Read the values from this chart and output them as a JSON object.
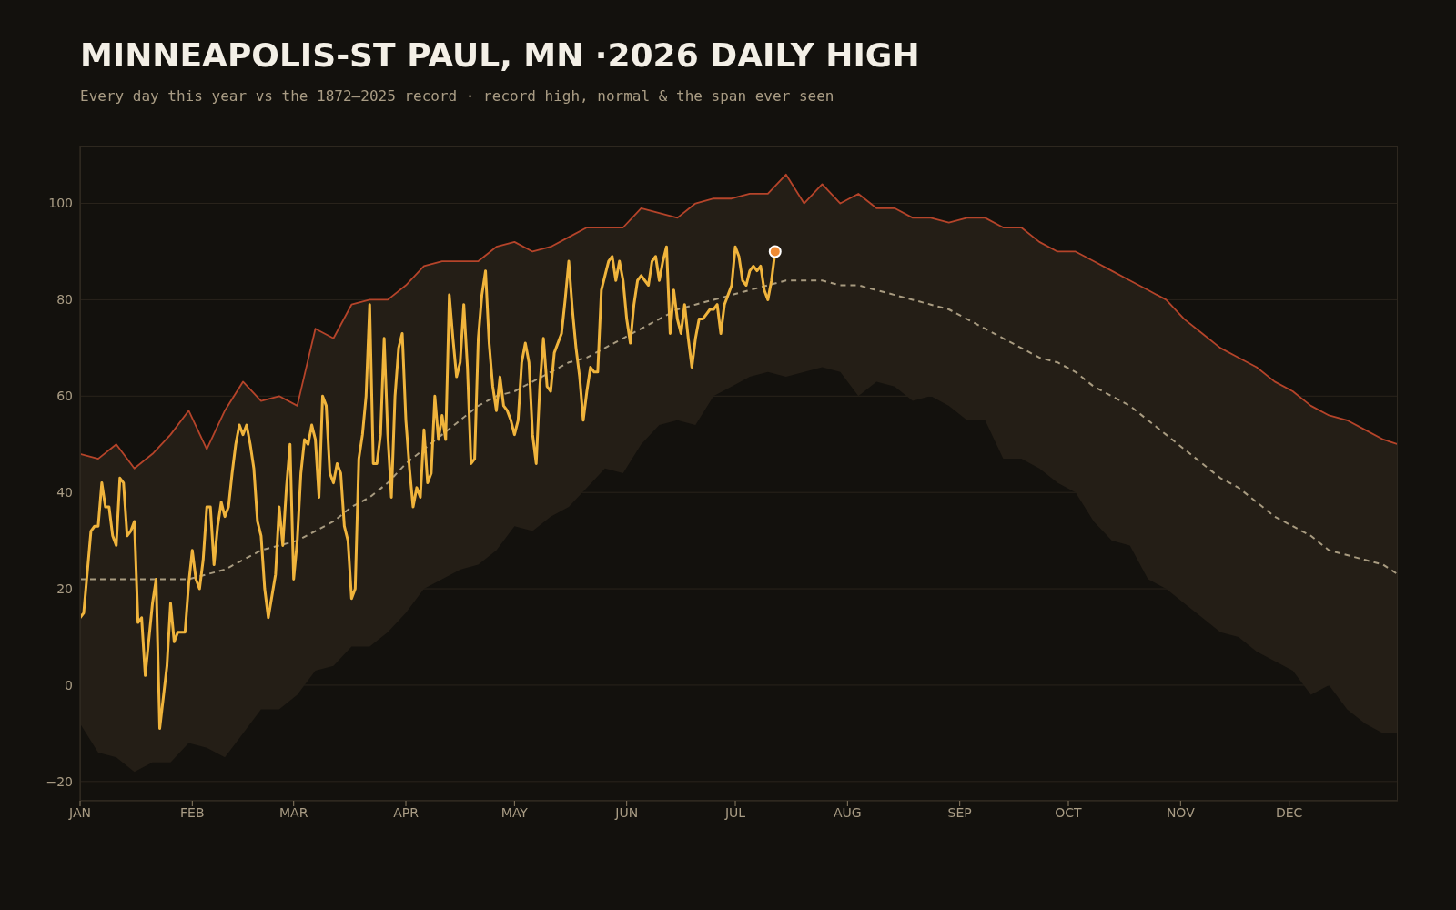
{
  "chart_data": {
    "type": "line",
    "title": "MINNEAPOLIS-ST PAUL, MN ·2026 DAILY HIGH",
    "subtitle": "Every day this year vs the 1872–2025 record · record high, normal & the span ever seen",
    "x": [
      "--01-01",
      "--01-06",
      "--01-11",
      "--01-16",
      "--01-21",
      "--01-26",
      "--01-31",
      "--02-05",
      "--02-10",
      "--02-15",
      "--02-20",
      "--02-25",
      "--03-02",
      "--03-07",
      "--03-12",
      "--03-17",
      "--03-22",
      "--03-27",
      "--04-01",
      "--04-06",
      "--04-11",
      "--04-16",
      "--04-21",
      "--04-26",
      "--05-01",
      "--05-06",
      "--05-11",
      "--05-16",
      "--05-21",
      "--05-26",
      "--05-31",
      "--06-05",
      "--06-10",
      "--06-15",
      "--06-20",
      "--06-25",
      "--06-30",
      "--07-05",
      "--07-10",
      "--07-15",
      "--07-20",
      "--07-25",
      "--07-30",
      "--08-04",
      "--08-09",
      "--08-14",
      "--08-19",
      "--08-24",
      "--08-29",
      "--09-03",
      "--09-08",
      "--09-13",
      "--09-18",
      "--09-23",
      "--09-28",
      "--10-03",
      "--10-08",
      "--10-13",
      "--10-18",
      "--10-23",
      "--10-28",
      "--11-02",
      "--11-07",
      "--11-12",
      "--11-17",
      "--11-22",
      "--11-27",
      "--12-02",
      "--12-07",
      "--12-12",
      "--12-17",
      "--12-22",
      "--12-27",
      "--12-31"
    ],
    "xlim": [
      "--01-01",
      "--12-31"
    ],
    "xticks": [
      {
        "value": "--01-01",
        "label": "JAN"
      },
      {
        "value": "--02-01",
        "label": "FEB"
      },
      {
        "value": "--03-01",
        "label": "MAR"
      },
      {
        "value": "--04-01",
        "label": "APR"
      },
      {
        "value": "--05-01",
        "label": "MAY"
      },
      {
        "value": "--06-01",
        "label": "JUN"
      },
      {
        "value": "--07-01",
        "label": "JUL"
      },
      {
        "value": "--08-01",
        "label": "AUG"
      },
      {
        "value": "--09-01",
        "label": "SEP"
      },
      {
        "value": "--10-01",
        "label": "OCT"
      },
      {
        "value": "--11-01",
        "label": "NOV"
      },
      {
        "value": "--12-01",
        "label": "DEC"
      }
    ],
    "ylim": [
      -24,
      112
    ],
    "yticks": [
      {
        "value": -20,
        "label": "−20"
      },
      0,
      20,
      40,
      60,
      80,
      100
    ],
    "grid": "y",
    "series": [
      {
        "color": "#a89b80",
        "line_style": "dashed",
        "values": [
          22,
          22,
          22,
          22,
          22,
          22,
          22,
          23,
          24,
          26,
          28,
          29,
          30,
          32,
          34,
          37,
          39,
          42,
          46,
          49,
          52,
          55,
          58,
          60,
          61,
          63,
          65,
          67,
          68,
          70,
          72,
          74,
          76,
          78,
          79,
          80,
          81,
          82,
          83,
          84,
          84,
          84,
          83,
          83,
          82,
          81,
          80,
          79,
          78,
          76,
          74,
          72,
          70,
          68,
          67,
          65,
          62,
          60,
          58,
          55,
          52,
          49,
          46,
          43,
          41,
          38,
          35,
          33,
          31,
          28,
          27,
          26,
          25,
          23
        ],
        "lower": [
          -8,
          -14,
          -15,
          -18,
          -16,
          -16,
          -12,
          -13,
          -15,
          -10,
          -5,
          -5,
          -2,
          3,
          4,
          8,
          8,
          11,
          15,
          20,
          22,
          24,
          25,
          28,
          33,
          32,
          35,
          37,
          41,
          45,
          44,
          50,
          54,
          55,
          54,
          60,
          62,
          64,
          65,
          64,
          65,
          66,
          65,
          60,
          63,
          62,
          59,
          60,
          58,
          55,
          55,
          47,
          47,
          45,
          42,
          40,
          34,
          30,
          29,
          22,
          20,
          17,
          14,
          11,
          10,
          7,
          5,
          3,
          -2,
          0,
          -5,
          -8,
          -10,
          -10
        ],
        "upper": [
          48,
          47,
          50,
          45,
          48,
          52,
          57,
          49,
          57,
          63,
          59,
          60,
          58,
          74,
          72,
          79,
          80,
          80,
          83,
          87,
          88,
          88,
          88,
          91,
          92,
          90,
          91,
          93,
          95,
          95,
          95,
          99,
          98,
          97,
          100,
          101,
          101,
          102,
          102,
          106,
          100,
          104,
          100,
          102,
          99,
          99,
          97,
          97,
          96,
          97,
          97,
          95,
          95,
          92,
          90,
          90,
          88,
          86,
          84,
          82,
          80,
          76,
          73,
          70,
          68,
          66,
          63,
          61,
          58,
          56,
          55,
          53,
          51,
          50
        ]
      },
      {
        "color": "#b5442a",
        "values": [
          48,
          47,
          50,
          45,
          48,
          52,
          57,
          49,
          57,
          63,
          59,
          60,
          58,
          74,
          72,
          79,
          80,
          80,
          83,
          87,
          88,
          88,
          88,
          91,
          92,
          90,
          91,
          93,
          95,
          95,
          95,
          99,
          98,
          97,
          100,
          101,
          101,
          102,
          102,
          106,
          100,
          104,
          100,
          102,
          99,
          99,
          97,
          97,
          96,
          97,
          97,
          95,
          95,
          92,
          90,
          90,
          88,
          86,
          84,
          82,
          80,
          76,
          73,
          70,
          68,
          66,
          63,
          61,
          58,
          56,
          55,
          53,
          51,
          50
        ]
      },
      {
        "color": "#f0b43c",
        "x": [
          "--01-01",
          "--01-02",
          "--01-04",
          "--01-05",
          "--01-06",
          "--01-07",
          "--01-08",
          "--01-09",
          "--01-10",
          "--01-11",
          "--01-12",
          "--01-13",
          "--01-14",
          "--01-15",
          "--01-16",
          "--01-17",
          "--01-18",
          "--01-19",
          "--01-21",
          "--01-22",
          "--01-23",
          "--01-25",
          "--01-26",
          "--01-27",
          "--01-28",
          "--01-30",
          "--01-31",
          "--02-01",
          "--02-02",
          "--02-03",
          "--02-04",
          "--02-05",
          "--02-06",
          "--02-07",
          "--02-08",
          "--02-09",
          "--02-10",
          "--02-11",
          "--02-12",
          "--02-13",
          "--02-14",
          "--02-15",
          "--02-16",
          "--02-17",
          "--02-18",
          "--02-19",
          "--02-20",
          "--02-21",
          "--02-22",
          "--02-24",
          "--02-25",
          "--02-26",
          "--02-27",
          "--02-28",
          "--03-01",
          "--03-02",
          "--03-03",
          "--03-04",
          "--03-05",
          "--03-06",
          "--03-07",
          "--03-08",
          "--03-09",
          "--03-10",
          "--03-11",
          "--03-12",
          "--03-13",
          "--03-14",
          "--03-15",
          "--03-16",
          "--03-17",
          "--03-18",
          "--03-19",
          "--03-20",
          "--03-21",
          "--03-22",
          "--03-23",
          "--03-24",
          "--03-25",
          "--03-26",
          "--03-27",
          "--03-28",
          "--03-29",
          "--03-30",
          "--03-31",
          "--04-01",
          "--04-02",
          "--04-03",
          "--04-04",
          "--04-05",
          "--04-06",
          "--04-07",
          "--04-08",
          "--04-09",
          "--04-10",
          "--04-11",
          "--04-12",
          "--04-13",
          "--04-14",
          "--04-15",
          "--04-16",
          "--04-17",
          "--04-18",
          "--04-19",
          "--04-20",
          "--04-21",
          "--04-22",
          "--04-23",
          "--04-24",
          "--04-25",
          "--04-26",
          "--04-27",
          "--04-28",
          "--04-29",
          "--04-30",
          "--05-01",
          "--05-02",
          "--05-03",
          "--05-04",
          "--05-05",
          "--05-06",
          "--05-07",
          "--05-08",
          "--05-09",
          "--05-10",
          "--05-11",
          "--05-12",
          "--05-13",
          "--05-14",
          "--05-15",
          "--05-16",
          "--05-17",
          "--05-18",
          "--05-19",
          "--05-20",
          "--05-21",
          "--05-22",
          "--05-23",
          "--05-24",
          "--05-25",
          "--05-26",
          "--05-27",
          "--05-28",
          "--05-29",
          "--05-30",
          "--05-31",
          "--06-01",
          "--06-02",
          "--06-03",
          "--06-04",
          "--06-05",
          "--06-06",
          "--06-07",
          "--06-08",
          "--06-09",
          "--06-10",
          "--06-11",
          "--06-12",
          "--06-13",
          "--06-14",
          "--06-15",
          "--06-16",
          "--06-17",
          "--06-18",
          "--06-19",
          "--06-20",
          "--06-21",
          "--06-22",
          "--06-23",
          "--06-24",
          "--06-25",
          "--06-26",
          "--06-27",
          "--06-28",
          "--06-29",
          "--06-30",
          "--07-01",
          "--07-02",
          "--07-03",
          "--07-04",
          "--07-05",
          "--07-06",
          "--07-07",
          "--07-08",
          "--07-09",
          "--07-10",
          "--07-11",
          "--07-12"
        ],
        "values": [
          14,
          15,
          32,
          33,
          33,
          42,
          37,
          37,
          31,
          29,
          43,
          42,
          31,
          32,
          34,
          13,
          14,
          2,
          17,
          22,
          -9,
          4,
          17,
          9,
          11,
          11,
          21,
          28,
          22,
          20,
          26,
          37,
          37,
          25,
          33,
          38,
          35,
          37,
          44,
          50,
          54,
          52,
          54,
          50,
          45,
          34,
          31,
          20,
          14,
          23,
          37,
          29,
          41,
          50,
          22,
          30,
          44,
          51,
          50,
          54,
          51,
          39,
          60,
          58,
          44,
          42,
          46,
          44,
          33,
          30,
          18,
          20,
          47,
          52,
          60,
          79,
          46,
          46,
          52,
          72,
          52,
          39,
          60,
          70,
          73,
          55,
          45,
          37,
          41,
          39,
          53,
          42,
          44,
          60,
          51,
          56,
          51,
          81,
          72,
          64,
          67,
          79,
          66,
          46,
          47,
          72,
          81,
          86,
          71,
          62,
          57,
          64,
          58,
          57,
          55,
          52,
          55,
          67,
          71,
          67,
          52,
          46,
          62,
          72,
          62,
          61,
          69,
          71,
          73,
          80,
          88,
          78,
          70,
          64,
          55,
          61,
          66,
          65,
          65,
          82,
          85,
          88,
          89,
          84,
          88,
          84,
          76,
          71,
          79,
          84,
          85,
          84,
          83,
          88,
          89,
          84,
          88,
          91,
          73,
          82,
          76,
          73,
          79,
          72,
          66,
          72,
          76,
          76,
          77,
          78,
          78,
          79,
          73,
          79,
          81,
          83,
          91,
          89,
          84,
          83,
          86,
          87,
          86,
          87,
          82,
          80,
          84,
          90
        ]
      }
    ]
  }
}
